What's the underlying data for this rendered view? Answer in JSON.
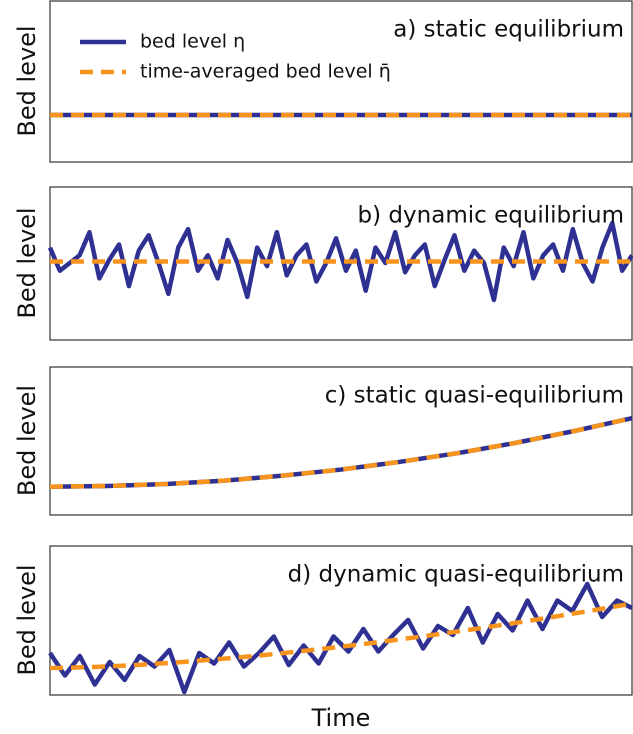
{
  "chart_data": [
    {
      "type": "line",
      "title": "a) static equilibrium",
      "y_label": "Bed level",
      "legend": "upper left",
      "x": [
        0,
        1
      ],
      "xlim": [
        0,
        1
      ],
      "ylim": [
        0,
        1
      ],
      "series": [
        {
          "name": "bed level η",
          "color": "#2e3192",
          "values": [
            0.29,
            0.29
          ]
        },
        {
          "name": "time-averaged bed level η̄",
          "color": "#f7941d",
          "dashed": true,
          "values": [
            0.29,
            0.29
          ]
        }
      ]
    },
    {
      "type": "line",
      "title": "b) dynamic equilibrium",
      "y_label": "Bed level",
      "x": [
        0,
        1,
        2,
        3,
        4,
        5,
        6,
        7,
        8,
        9,
        10,
        11,
        12,
        13,
        14,
        15,
        16,
        17,
        18,
        19,
        20,
        21,
        22,
        23,
        24,
        25,
        26,
        27,
        28,
        29,
        30,
        31,
        32,
        33,
        34,
        35,
        36,
        37,
        38,
        39,
        40,
        41,
        42,
        43,
        44,
        45,
        46,
        47,
        48,
        49,
        50,
        51,
        52,
        53,
        54,
        55,
        56,
        57,
        58,
        59
      ],
      "xlim": [
        0,
        59
      ],
      "ylim": [
        0,
        1
      ],
      "series": [
        {
          "color": "#2e3192",
          "values": [
            0.6,
            0.45,
            0.5,
            0.55,
            0.7,
            0.4,
            0.52,
            0.62,
            0.35,
            0.58,
            0.68,
            0.5,
            0.3,
            0.6,
            0.72,
            0.45,
            0.55,
            0.4,
            0.65,
            0.5,
            0.28,
            0.6,
            0.48,
            0.7,
            0.42,
            0.55,
            0.62,
            0.38,
            0.5,
            0.66,
            0.45,
            0.58,
            0.32,
            0.6,
            0.5,
            0.7,
            0.44,
            0.55,
            0.62,
            0.35,
            0.52,
            0.68,
            0.45,
            0.58,
            0.5,
            0.26,
            0.6,
            0.48,
            0.7,
            0.4,
            0.55,
            0.62,
            0.45,
            0.72,
            0.5,
            0.38,
            0.6,
            0.76,
            0.45,
            0.55
          ]
        },
        {
          "color": "#f7941d",
          "dashed": true,
          "values": [
            0.51,
            0.51,
            0.51,
            0.51,
            0.51,
            0.51,
            0.51,
            0.51,
            0.51,
            0.51,
            0.51,
            0.51,
            0.51,
            0.51,
            0.51,
            0.51,
            0.51,
            0.51,
            0.51,
            0.51,
            0.51,
            0.51,
            0.51,
            0.51,
            0.51,
            0.51,
            0.51,
            0.51,
            0.51,
            0.51,
            0.51,
            0.51,
            0.51,
            0.51,
            0.51,
            0.51,
            0.51,
            0.51,
            0.51,
            0.51,
            0.51,
            0.51,
            0.51,
            0.51,
            0.51,
            0.51,
            0.51,
            0.51,
            0.51,
            0.51,
            0.51,
            0.51,
            0.51,
            0.51,
            0.51,
            0.51,
            0.51,
            0.51,
            0.51,
            0.51
          ]
        }
      ]
    },
    {
      "type": "line",
      "title": "c) static quasi-equilibrium",
      "y_label": "Bed level",
      "x": [
        0,
        1,
        2,
        3,
        4,
        5,
        6,
        7,
        8,
        9,
        10
      ],
      "xlim": [
        0,
        10
      ],
      "ylim": [
        0,
        1
      ],
      "series": [
        {
          "color": "#2e3192",
          "values": [
            0.19,
            0.195,
            0.208,
            0.231,
            0.264,
            0.305,
            0.356,
            0.415,
            0.484,
            0.563,
            0.65
          ]
        },
        {
          "color": "#f7941d",
          "dashed": true,
          "values": [
            0.19,
            0.195,
            0.208,
            0.231,
            0.264,
            0.305,
            0.356,
            0.415,
            0.484,
            0.563,
            0.65
          ]
        }
      ]
    },
    {
      "type": "line",
      "title": "d) dynamic quasi-equilibrium",
      "y_label": "Bed level",
      "x_label": "Time",
      "x": [
        0,
        1,
        2,
        3,
        4,
        5,
        6,
        7,
        8,
        9,
        10,
        11,
        12,
        13,
        14,
        15,
        16,
        17,
        18,
        19,
        20,
        21,
        22,
        23,
        24,
        25,
        26,
        27,
        28,
        29,
        30,
        31,
        32,
        33,
        34,
        35,
        36,
        37,
        38,
        39
      ],
      "xlim": [
        0,
        39
      ],
      "ylim": [
        0,
        1
      ],
      "series": [
        {
          "color": "#2e3192",
          "values": [
            0.28,
            0.13,
            0.26,
            0.07,
            0.22,
            0.1,
            0.26,
            0.19,
            0.3,
            0.02,
            0.28,
            0.21,
            0.35,
            0.19,
            0.28,
            0.39,
            0.2,
            0.33,
            0.21,
            0.39,
            0.29,
            0.44,
            0.29,
            0.4,
            0.5,
            0.31,
            0.46,
            0.4,
            0.58,
            0.35,
            0.54,
            0.43,
            0.63,
            0.44,
            0.63,
            0.56,
            0.74,
            0.52,
            0.63,
            0.58
          ]
        },
        {
          "color": "#f7941d",
          "dashed": true,
          "values": [
            0.18,
            0.181,
            0.184,
            0.187,
            0.191,
            0.196,
            0.201,
            0.208,
            0.214,
            0.221,
            0.229,
            0.237,
            0.245,
            0.254,
            0.263,
            0.273,
            0.283,
            0.294,
            0.305,
            0.316,
            0.328,
            0.34,
            0.352,
            0.365,
            0.378,
            0.391,
            0.405,
            0.419,
            0.433,
            0.448,
            0.463,
            0.478,
            0.493,
            0.509,
            0.525,
            0.542,
            0.558,
            0.575,
            0.592,
            0.61
          ]
        }
      ]
    }
  ]
}
